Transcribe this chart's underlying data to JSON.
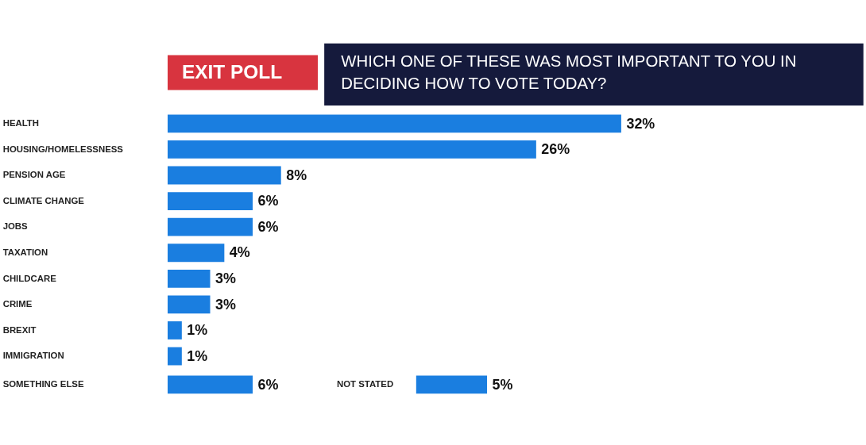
{
  "chart_data": [
    {
      "type": "bar",
      "orientation": "horizontal",
      "title": "WHICH ONE OF THESE WAS MOST IMPORTANT TO YOU IN DECIDING HOW TO VOTE TODAY?",
      "annotations": [
        "EXIT POLL"
      ],
      "categories": [
        "HEALTH",
        "HOUSING/HOMELESSNESS",
        "PENSION AGE",
        "CLIMATE CHANGE",
        "JOBS",
        "TAXATION",
        "CHILDCARE",
        "CRIME",
        "BREXIT",
        "IMMIGRATION"
      ],
      "values": [
        32,
        26,
        8,
        6,
        6,
        4,
        3,
        3,
        1,
        1
      ],
      "value_labels": [
        "32%",
        "26%",
        "8%",
        "6%",
        "6%",
        "4%",
        "3%",
        "3%",
        "1%",
        "1%"
      ],
      "color": "#1a7ee0",
      "grid": false,
      "legend": false
    },
    {
      "type": "bar",
      "orientation": "horizontal",
      "categories": [
        "SOMETHING ELSE"
      ],
      "values": [
        6
      ],
      "value_labels": [
        "6%"
      ],
      "color": "#1a7ee0",
      "grid": false,
      "legend": false
    },
    {
      "type": "bar",
      "orientation": "horizontal",
      "categories": [
        "NOT STATED"
      ],
      "values": [
        5
      ],
      "value_labels": [
        "5%"
      ],
      "color": "#1a7ee0",
      "grid": false,
      "legend": false
    }
  ]
}
